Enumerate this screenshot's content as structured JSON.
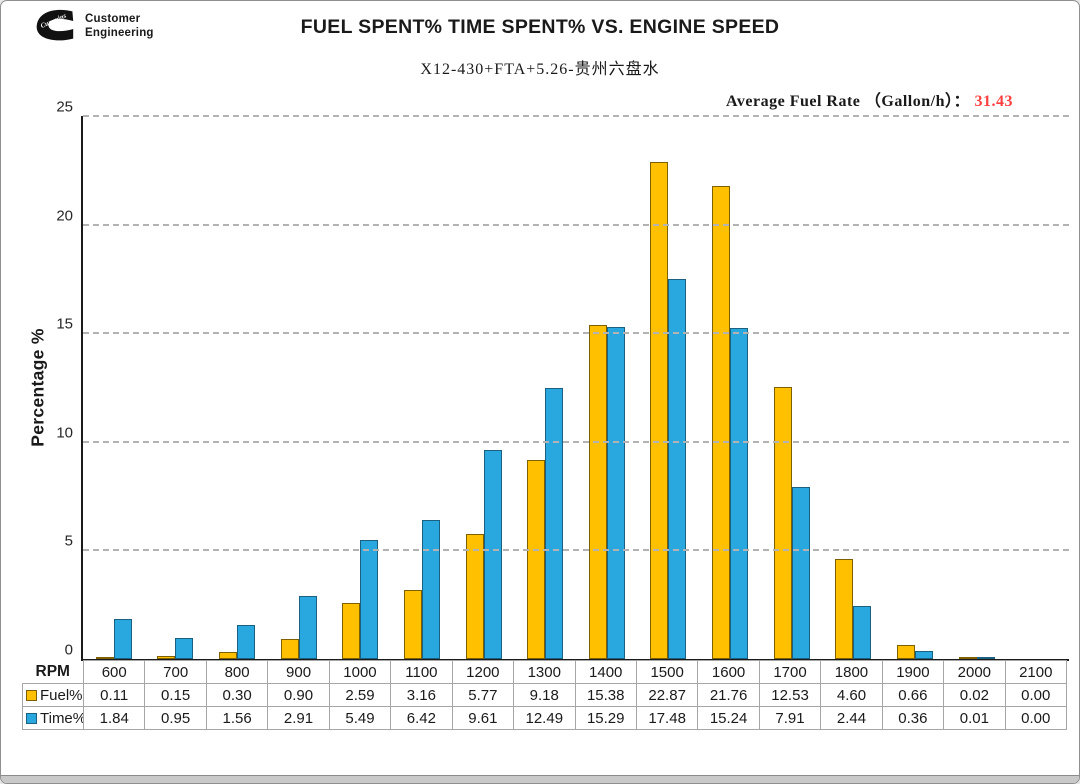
{
  "page": {
    "logo": {
      "line1": "Customer",
      "line2": "Engineering",
      "brand_script": "Cummins"
    },
    "title": "FUEL SPENT% TIME SPENT% VS. ENGINE SPEED",
    "subtitle": "X12-430+FTA+5.26-贵州六盘水",
    "avg_fuel_rate_label": "Average Fuel Rate （Gallon/h）： ",
    "avg_fuel_rate_value": "31.43",
    "avg_fuel_rate_value_color": "#ff4040"
  },
  "chart_data": {
    "type": "bar",
    "title": "FUEL SPENT% TIME SPENT% VS. ENGINE SPEED",
    "subtitle": "X12-430+FTA+5.26-贵州六盘水",
    "xlabel": "RPM",
    "ylabel": "Percentage %",
    "ylim": [
      0,
      25
    ],
    "yticks": [
      0,
      5,
      10,
      15,
      20,
      25
    ],
    "grid": "horizontal-dashed",
    "gridline_color": "#b3b3b3",
    "legend_position": "table-row-headers",
    "categories": [
      600,
      700,
      800,
      900,
      1000,
      1100,
      1200,
      1300,
      1400,
      1500,
      1600,
      1700,
      1800,
      1900,
      2000,
      2100
    ],
    "series": [
      {
        "name": "Fuel%",
        "color": "#FFC000",
        "border_color": "#7F6000",
        "values": [
          0.11,
          0.15,
          0.3,
          0.9,
          2.59,
          3.16,
          5.77,
          9.18,
          15.38,
          22.87,
          21.76,
          12.53,
          4.6,
          0.66,
          0.02,
          0.0
        ]
      },
      {
        "name": "Time%",
        "color": "#29A8DF",
        "border_color": "#1A6080",
        "values": [
          1.84,
          0.95,
          1.56,
          2.91,
          5.49,
          6.42,
          9.61,
          12.49,
          15.29,
          17.48,
          15.24,
          7.91,
          2.44,
          0.36,
          0.01,
          0.0
        ]
      }
    ]
  },
  "table": {
    "corner_label": "RPM",
    "value_decimals": 2
  }
}
